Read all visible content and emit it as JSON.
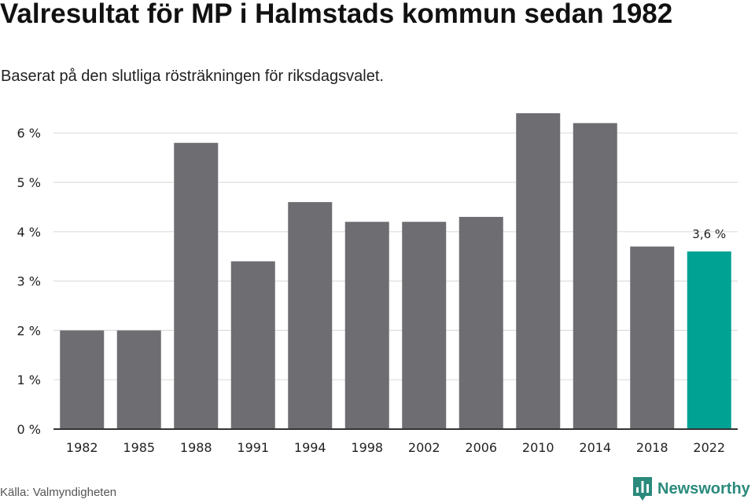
{
  "title": "Valresultat för MP i Halmstads kommun sedan 1982",
  "subtitle": "Baserat på den slutliga rösträkningen för riksdagsvalet.",
  "source": "Källa: Valmyndigheten",
  "brand": "Newsworthy",
  "colors": {
    "bar": "#6e6d72",
    "highlight": "#00a294",
    "grid": "#dddddd",
    "axis": "#333333",
    "brand": "#2a8a7c"
  },
  "chart_data": {
    "type": "bar",
    "categories": [
      "1982",
      "1985",
      "1988",
      "1991",
      "1994",
      "1998",
      "2002",
      "2006",
      "2010",
      "2014",
      "2018",
      "2022"
    ],
    "values": [
      2.0,
      2.0,
      5.8,
      3.4,
      4.6,
      4.2,
      4.2,
      4.3,
      6.4,
      6.2,
      3.7,
      3.6
    ],
    "highlight_index": 11,
    "data_labels": [
      {
        "index": 11,
        "text": "3,6 %"
      }
    ],
    "y_ticks": [
      0,
      1,
      2,
      3,
      4,
      5,
      6
    ],
    "y_tick_labels": [
      "0 %",
      "1 %",
      "2 %",
      "3 %",
      "4 %",
      "5 %",
      "6 %"
    ],
    "ylim": [
      0,
      6.4
    ],
    "grid": true,
    "xlabel": "",
    "ylabel": ""
  }
}
